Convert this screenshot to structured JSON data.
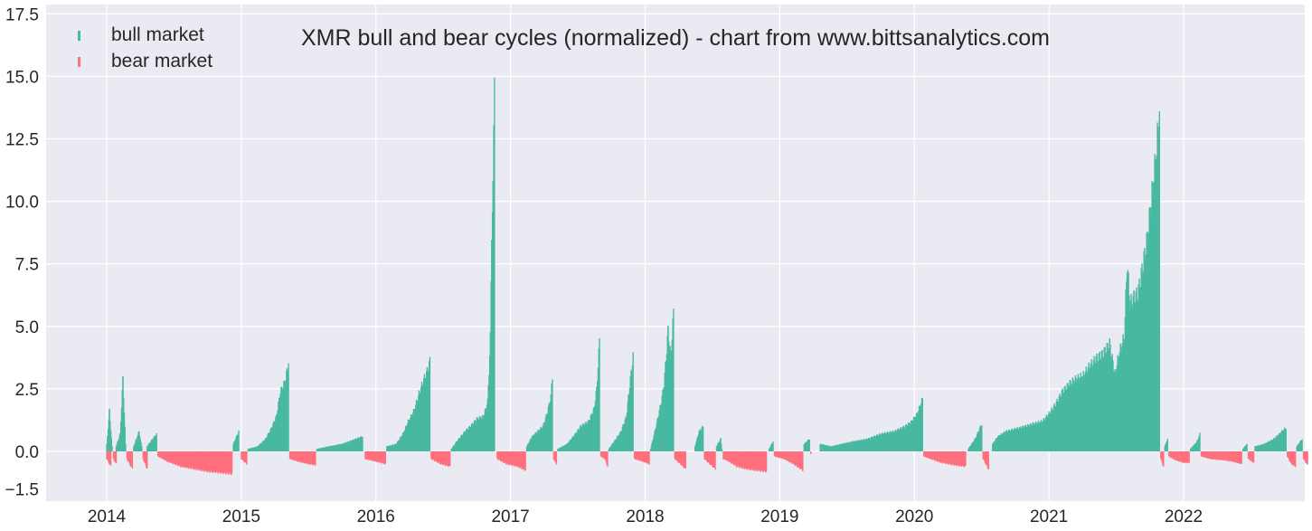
{
  "chart_data": {
    "type": "bar",
    "title": "XMR bull and bear cycles (normalized)  - chart from www.bittsanalytics.com",
    "xlabel": "",
    "ylabel": "",
    "xlim": [
      2013.55,
      2022.9
    ],
    "ylim": [
      -2.0,
      17.5
    ],
    "x_ticks": [
      "2014",
      "2015",
      "2016",
      "2017",
      "2018",
      "2019",
      "2020",
      "2021",
      "2022"
    ],
    "y_ticks": [
      "17.5",
      "15.0",
      "12.5",
      "10.0",
      "7.5",
      "5.0",
      "2.5",
      "0.0",
      "−1.5"
    ],
    "y_tick_values": [
      17.5,
      15.0,
      12.5,
      10.0,
      7.5,
      5.0,
      2.5,
      0.0,
      -1.5
    ],
    "grid": true,
    "legend_position": "top-left",
    "colors": {
      "bull": "#48b9a0",
      "bear": "#ff6f7d",
      "background": "#eaeaf2",
      "grid": "#ffffff"
    },
    "series": [
      {
        "name": "bull market",
        "color": "#48b9a0",
        "segments": [
          [
            [
              2014.0,
              0.3
            ],
            [
              2014.02,
              1.6
            ],
            [
              2014.04,
              0.2
            ]
          ],
          [
            [
              2014.07,
              0.2
            ],
            [
              2014.1,
              0.7
            ],
            [
              2014.12,
              2.9
            ],
            [
              2014.14,
              0.3
            ]
          ],
          [
            [
              2014.2,
              0.2
            ],
            [
              2014.24,
              0.8
            ],
            [
              2014.26,
              0.2
            ]
          ],
          [
            [
              2014.3,
              0.2
            ],
            [
              2014.34,
              0.5
            ],
            [
              2014.37,
              0.7
            ]
          ],
          [
            [
              2014.94,
              0.3
            ],
            [
              2014.98,
              0.8
            ]
          ],
          [
            [
              2015.05,
              0.1
            ],
            [
              2015.12,
              0.2
            ],
            [
              2015.18,
              0.5
            ],
            [
              2015.22,
              0.9
            ],
            [
              2015.26,
              1.4
            ],
            [
              2015.29,
              2.4
            ],
            [
              2015.31,
              2.6
            ],
            [
              2015.33,
              2.9
            ],
            [
              2015.35,
              3.6
            ]
          ],
          [
            [
              2015.56,
              0.1
            ],
            [
              2015.65,
              0.2
            ],
            [
              2015.75,
              0.3
            ],
            [
              2015.85,
              0.5
            ],
            [
              2015.9,
              0.6
            ]
          ],
          [
            [
              2016.08,
              0.2
            ],
            [
              2016.15,
              0.3
            ],
            [
              2016.2,
              0.7
            ],
            [
              2016.24,
              1.2
            ],
            [
              2016.28,
              1.6
            ],
            [
              2016.32,
              2.3
            ],
            [
              2016.35,
              2.8
            ],
            [
              2016.38,
              3.2
            ],
            [
              2016.4,
              3.6
            ]
          ],
          [
            [
              2016.56,
              0.1
            ],
            [
              2016.6,
              0.4
            ],
            [
              2016.66,
              0.8
            ],
            [
              2016.7,
              1.0
            ],
            [
              2016.75,
              1.3
            ],
            [
              2016.8,
              1.4
            ],
            [
              2016.83,
              2.0
            ],
            [
              2016.85,
              4.5
            ],
            [
              2016.86,
              9.0
            ],
            [
              2016.87,
              10.2
            ],
            [
              2016.88,
              15.9
            ]
          ],
          [
            [
              2017.12,
              0.2
            ],
            [
              2017.16,
              0.6
            ],
            [
              2017.2,
              0.8
            ],
            [
              2017.24,
              1.0
            ],
            [
              2017.27,
              1.5
            ],
            [
              2017.3,
              2.2
            ],
            [
              2017.31,
              3.0
            ]
          ],
          [
            [
              2017.35,
              0.1
            ],
            [
              2017.42,
              0.3
            ],
            [
              2017.48,
              0.7
            ],
            [
              2017.52,
              1.0
            ],
            [
              2017.58,
              1.2
            ],
            [
              2017.62,
              1.7
            ],
            [
              2017.64,
              2.5
            ],
            [
              2017.66,
              4.4
            ]
          ],
          [
            [
              2017.73,
              0.1
            ],
            [
              2017.77,
              0.4
            ],
            [
              2017.82,
              0.8
            ],
            [
              2017.86,
              1.4
            ],
            [
              2017.89,
              2.9
            ],
            [
              2017.91,
              3.8
            ]
          ],
          [
            [
              2018.04,
              0.1
            ],
            [
              2018.08,
              1.0
            ],
            [
              2018.12,
              2.0
            ],
            [
              2018.14,
              2.7
            ],
            [
              2018.17,
              4.8
            ],
            [
              2018.19,
              3.8
            ],
            [
              2018.21,
              5.5
            ]
          ],
          [
            [
              2018.37,
              0.2
            ],
            [
              2018.4,
              0.8
            ],
            [
              2018.43,
              1.0
            ]
          ],
          [
            [
              2018.53,
              0.2
            ],
            [
              2018.56,
              0.5
            ],
            [
              2018.57,
              0.1
            ]
          ],
          [
            [
              2018.92,
              0.1
            ],
            [
              2018.95,
              0.4
            ]
          ],
          [
            [
              2019.18,
              0.3
            ],
            [
              2019.22,
              0.5
            ]
          ],
          [
            [
              2019.3,
              0.3
            ],
            [
              2019.38,
              0.2
            ],
            [
              2019.46,
              0.3
            ],
            [
              2019.55,
              0.4
            ],
            [
              2019.65,
              0.5
            ],
            [
              2019.75,
              0.7
            ],
            [
              2019.85,
              0.8
            ],
            [
              2019.93,
              1.0
            ],
            [
              2019.98,
              1.2
            ],
            [
              2020.02,
              1.5
            ],
            [
              2020.06,
              2.1
            ]
          ],
          [
            [
              2020.4,
              0.1
            ],
            [
              2020.45,
              0.5
            ],
            [
              2020.5,
              1.1
            ]
          ],
          [
            [
              2020.58,
              0.3
            ],
            [
              2020.62,
              0.6
            ],
            [
              2020.68,
              0.8
            ],
            [
              2020.75,
              0.9
            ],
            [
              2020.82,
              1.0
            ],
            [
              2020.88,
              1.1
            ],
            [
              2020.95,
              1.2
            ],
            [
              2021.0,
              1.5
            ],
            [
              2021.05,
              1.9
            ],
            [
              2021.1,
              2.4
            ],
            [
              2021.15,
              2.7
            ],
            [
              2021.2,
              2.9
            ],
            [
              2021.25,
              3.0
            ],
            [
              2021.3,
              3.4
            ],
            [
              2021.35,
              3.7
            ],
            [
              2021.4,
              3.9
            ],
            [
              2021.45,
              4.3
            ],
            [
              2021.49,
              3.1
            ],
            [
              2021.52,
              3.9
            ],
            [
              2021.56,
              4.6
            ],
            [
              2021.58,
              7.6
            ],
            [
              2021.6,
              5.9
            ],
            [
              2021.63,
              6.1
            ],
            [
              2021.66,
              6.3
            ],
            [
              2021.7,
              7.5
            ],
            [
              2021.73,
              8.5
            ],
            [
              2021.76,
              10.0
            ],
            [
              2021.78,
              11.0
            ],
            [
              2021.8,
              12.0
            ],
            [
              2021.82,
              13.7
            ]
          ],
          [
            [
              2021.86,
              0.2
            ],
            [
              2021.88,
              0.5
            ]
          ],
          [
            [
              2022.05,
              0.1
            ],
            [
              2022.1,
              0.4
            ],
            [
              2022.12,
              0.7
            ]
          ],
          [
            [
              2022.44,
              0.1
            ],
            [
              2022.47,
              0.3
            ]
          ],
          [
            [
              2022.53,
              0.2
            ],
            [
              2022.6,
              0.3
            ],
            [
              2022.67,
              0.5
            ],
            [
              2022.73,
              0.8
            ],
            [
              2022.76,
              0.95
            ]
          ],
          [
            [
              2022.84,
              0.2
            ],
            [
              2022.88,
              0.5
            ]
          ]
        ]
      },
      {
        "name": "bear market",
        "color": "#ff6f7d",
        "segments": [
          [
            [
              2014.0,
              -0.3
            ],
            [
              2014.03,
              -0.6
            ]
          ],
          [
            [
              2014.05,
              -0.3
            ],
            [
              2014.07,
              -0.5
            ]
          ],
          [
            [
              2014.15,
              -0.3
            ],
            [
              2014.19,
              -0.7
            ]
          ],
          [
            [
              2014.27,
              -0.3
            ],
            [
              2014.3,
              -0.7
            ]
          ],
          [
            [
              2014.38,
              -0.2
            ],
            [
              2014.45,
              -0.4
            ],
            [
              2014.55,
              -0.6
            ],
            [
              2014.65,
              -0.7
            ],
            [
              2014.75,
              -0.8
            ],
            [
              2014.85,
              -0.85
            ],
            [
              2014.93,
              -0.9
            ]
          ],
          [
            [
              2015.0,
              -0.3
            ],
            [
              2015.04,
              -0.5
            ]
          ],
          [
            [
              2015.36,
              -0.3
            ],
            [
              2015.42,
              -0.4
            ],
            [
              2015.5,
              -0.5
            ],
            [
              2015.55,
              -0.55
            ]
          ],
          [
            [
              2015.92,
              -0.3
            ],
            [
              2016.0,
              -0.4
            ],
            [
              2016.07,
              -0.5
            ]
          ],
          [
            [
              2016.41,
              -0.3
            ],
            [
              2016.48,
              -0.5
            ],
            [
              2016.55,
              -0.6
            ]
          ],
          [
            [
              2016.9,
              -0.3
            ],
            [
              2016.97,
              -0.5
            ],
            [
              2017.05,
              -0.6
            ],
            [
              2017.11,
              -0.75
            ]
          ],
          [
            [
              2017.32,
              -0.3
            ],
            [
              2017.34,
              -0.5
            ]
          ],
          [
            [
              2017.67,
              -0.2
            ],
            [
              2017.7,
              -0.3
            ],
            [
              2017.72,
              -0.6
            ]
          ],
          [
            [
              2017.92,
              -0.3
            ],
            [
              2017.98,
              -0.4
            ],
            [
              2018.03,
              -0.5
            ]
          ],
          [
            [
              2018.22,
              -0.3
            ],
            [
              2018.26,
              -0.5
            ],
            [
              2018.3,
              -0.7
            ]
          ],
          [
            [
              2018.44,
              -0.3
            ],
            [
              2018.48,
              -0.5
            ],
            [
              2018.52,
              -0.7
            ]
          ],
          [
            [
              2018.58,
              -0.3
            ],
            [
              2018.62,
              -0.4
            ],
            [
              2018.68,
              -0.6
            ],
            [
              2018.75,
              -0.7
            ],
            [
              2018.82,
              -0.75
            ],
            [
              2018.9,
              -0.8
            ]
          ],
          [
            [
              2018.96,
              -0.2
            ],
            [
              2019.03,
              -0.3
            ],
            [
              2019.1,
              -0.5
            ],
            [
              2019.17,
              -0.75
            ]
          ],
          [
            [
              2019.23,
              -0.1
            ]
          ],
          [
            [
              2020.07,
              -0.2
            ],
            [
              2020.12,
              -0.3
            ],
            [
              2020.2,
              -0.45
            ],
            [
              2020.3,
              -0.55
            ],
            [
              2020.38,
              -0.6
            ]
          ],
          [
            [
              2020.51,
              -0.3
            ],
            [
              2020.55,
              -0.7
            ]
          ],
          [
            [
              2021.83,
              -0.3
            ],
            [
              2021.85,
              -0.6
            ]
          ],
          [
            [
              2021.89,
              -0.2
            ],
            [
              2021.94,
              -0.35
            ],
            [
              2022.0,
              -0.45
            ],
            [
              2022.04,
              -0.45
            ]
          ],
          [
            [
              2022.13,
              -0.2
            ],
            [
              2022.2,
              -0.3
            ],
            [
              2022.3,
              -0.35
            ],
            [
              2022.36,
              -0.4
            ],
            [
              2022.43,
              -0.5
            ]
          ],
          [
            [
              2022.48,
              -0.3
            ],
            [
              2022.52,
              -0.45
            ]
          ],
          [
            [
              2022.77,
              -0.2
            ],
            [
              2022.8,
              -0.5
            ],
            [
              2022.83,
              -0.6
            ]
          ],
          [
            [
              2022.89,
              -0.3
            ],
            [
              2022.92,
              -0.55
            ]
          ]
        ]
      }
    ]
  }
}
